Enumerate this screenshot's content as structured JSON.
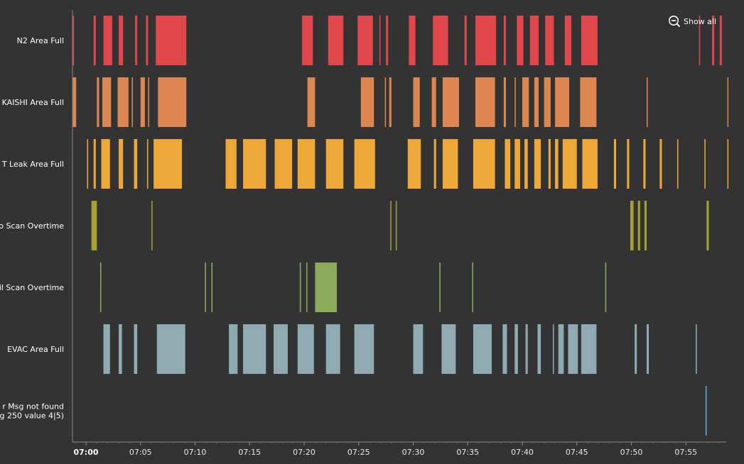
{
  "controls": {
    "show_all_label": "Show all"
  },
  "colors": {
    "background": "#333333",
    "axis": "#8a8a8a",
    "series": [
      "#e0474c",
      "#dc8751",
      "#eea839",
      "#a7a032",
      "#8caa5c",
      "#8faab0",
      "#5aaee3"
    ]
  },
  "chart_data": {
    "type": "timeline",
    "categories": [
      "N2 Area Full",
      "KAISHI Area Full",
      "T Leak Area Full",
      "o Scan Overtime",
      "il Scan Overtime",
      "EVAC Area Full",
      "r Msg not found\ng 250 value 4|5)"
    ],
    "x_ticks": [
      "07:00",
      "07:05",
      "07:10",
      "07:15",
      "07:20",
      "07:25",
      "07:30",
      "07:35",
      "07:40",
      "07:45",
      "07:50",
      "07:55"
    ],
    "x_range_minutes": [
      -1.2,
      58.9
    ],
    "series": [
      {
        "category": "N2 Area Full",
        "intervals": [
          [
            -1.2,
            -1.1
          ],
          [
            0.7,
            0.9
          ],
          [
            1.6,
            2.4
          ],
          [
            3.0,
            3.4
          ],
          [
            4.5,
            4.7
          ],
          [
            5.5,
            5.7
          ],
          [
            6.4,
            9.2
          ],
          [
            19.8,
            20.8
          ],
          [
            22.2,
            23.6
          ],
          [
            24.9,
            26.3
          ],
          [
            26.9,
            27.0
          ],
          [
            27.5,
            27.7
          ],
          [
            29.6,
            30.2
          ],
          [
            31.8,
            33.2
          ],
          [
            34.7,
            34.9
          ],
          [
            35.7,
            37.6
          ],
          [
            38.3,
            38.5
          ],
          [
            39.5,
            40.1
          ],
          [
            40.7,
            41.5
          ],
          [
            42.1,
            42.9
          ],
          [
            43.9,
            44.5
          ],
          [
            45.4,
            46.9
          ],
          [
            56.2,
            56.3
          ],
          [
            57.4,
            57.6
          ],
          [
            58.1,
            58.3
          ]
        ]
      },
      {
        "category": "KAISHI Area Full",
        "intervals": [
          [
            -1.2,
            -0.9
          ],
          [
            1.0,
            1.2
          ],
          [
            1.5,
            2.3
          ],
          [
            2.9,
            3.9
          ],
          [
            4.2,
            4.3
          ],
          [
            5.0,
            5.4
          ],
          [
            5.7,
            5.8
          ],
          [
            6.6,
            9.2
          ],
          [
            20.3,
            21.0
          ],
          [
            25.2,
            26.4
          ],
          [
            27.4,
            27.5
          ],
          [
            27.8,
            28.0
          ],
          [
            30.0,
            30.6
          ],
          [
            31.7,
            32.1
          ],
          [
            32.7,
            34.2
          ],
          [
            35.7,
            37.5
          ],
          [
            38.3,
            38.5
          ],
          [
            39.3,
            39.4
          ],
          [
            40.0,
            40.6
          ],
          [
            41.1,
            41.5
          ],
          [
            42.0,
            42.6
          ],
          [
            43.0,
            44.3
          ],
          [
            45.3,
            46.8
          ],
          [
            51.4,
            51.5
          ],
          [
            58.8,
            58.9
          ]
        ]
      },
      {
        "category": "T Leak Area Full",
        "intervals": [
          [
            0.1,
            0.2
          ],
          [
            0.7,
            0.9
          ],
          [
            1.4,
            2.2
          ],
          [
            3.0,
            3.4
          ],
          [
            4.4,
            4.7
          ],
          [
            5.6,
            5.7
          ],
          [
            6.2,
            8.8
          ],
          [
            12.8,
            13.8
          ],
          [
            14.4,
            16.5
          ],
          [
            17.3,
            18.9
          ],
          [
            19.4,
            21.0
          ],
          [
            22.0,
            23.6
          ],
          [
            24.6,
            26.5
          ],
          [
            29.5,
            30.7
          ],
          [
            31.9,
            32.1
          ],
          [
            32.7,
            34.1
          ],
          [
            35.5,
            37.5
          ],
          [
            38.4,
            38.9
          ],
          [
            39.3,
            39.8
          ],
          [
            40.2,
            40.5
          ],
          [
            41.1,
            41.7
          ],
          [
            42.4,
            42.6
          ],
          [
            43.0,
            43.3
          ],
          [
            43.7,
            45.0
          ],
          [
            45.5,
            46.9
          ],
          [
            48.4,
            48.6
          ],
          [
            49.6,
            49.8
          ],
          [
            51.1,
            51.3
          ],
          [
            52.6,
            52.8
          ],
          [
            54.2,
            54.3
          ],
          [
            56.7,
            56.8
          ],
          [
            58.8,
            59.0
          ]
        ]
      },
      {
        "category": "o Scan Overtime",
        "intervals": [
          [
            0.5,
            1.0
          ],
          [
            6.0,
            6.1
          ],
          [
            27.9,
            28.0
          ],
          [
            28.4,
            28.5
          ],
          [
            49.9,
            50.2
          ],
          [
            50.6,
            50.8
          ],
          [
            51.2,
            51.4
          ],
          [
            56.9,
            57.1
          ]
        ]
      },
      {
        "category": "il Scan Overtime",
        "intervals": [
          [
            1.3,
            1.4
          ],
          [
            10.9,
            11.0
          ],
          [
            11.5,
            11.6
          ],
          [
            19.6,
            19.7
          ],
          [
            20.2,
            20.3
          ],
          [
            21.0,
            23.0
          ],
          [
            32.4,
            32.5
          ],
          [
            35.4,
            35.5
          ],
          [
            47.6,
            47.7
          ]
        ]
      },
      {
        "category": "EVAC Area Full",
        "intervals": [
          [
            1.6,
            2.2
          ],
          [
            3.0,
            3.3
          ],
          [
            4.4,
            4.7
          ],
          [
            6.5,
            9.1
          ],
          [
            13.1,
            13.9
          ],
          [
            14.4,
            16.5
          ],
          [
            17.2,
            18.5
          ],
          [
            19.4,
            20.9
          ],
          [
            22.0,
            23.3
          ],
          [
            24.6,
            26.4
          ],
          [
            30.0,
            30.9
          ],
          [
            32.6,
            33.9
          ],
          [
            35.5,
            37.2
          ],
          [
            38.2,
            38.6
          ],
          [
            39.3,
            39.6
          ],
          [
            40.3,
            40.5
          ],
          [
            41.4,
            41.7
          ],
          [
            42.8,
            42.9
          ],
          [
            43.3,
            43.8
          ],
          [
            44.2,
            45.1
          ],
          [
            45.4,
            46.8
          ],
          [
            50.3,
            50.5
          ],
          [
            51.4,
            51.6
          ],
          [
            55.9,
            56.0
          ]
        ]
      },
      {
        "category": "r Msg not found\ng 250 value 4|5)",
        "intervals": [
          [
            56.8,
            56.9
          ]
        ]
      }
    ]
  }
}
